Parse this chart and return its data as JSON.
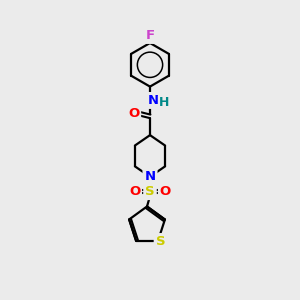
{
  "bg_color": "#ebebeb",
  "bond_color": "#000000",
  "atom_colors": {
    "F": "#cc44cc",
    "N": "#0000ff",
    "O": "#ff0000",
    "S_sulfonyl": "#cccc00",
    "S_thiophene": "#cccc00",
    "H": "#008888",
    "C": "#000000"
  },
  "fig_width": 3.0,
  "fig_height": 3.0,
  "dpi": 100
}
